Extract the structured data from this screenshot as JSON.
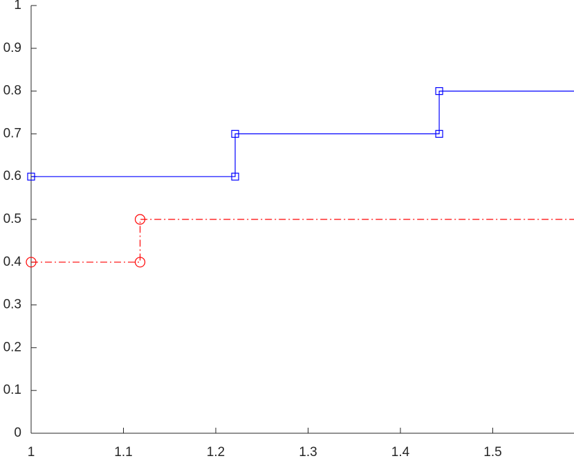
{
  "chart_data": {
    "type": "stairs",
    "series": [
      {
        "color": "#0000ff",
        "marker": "square",
        "linestyle": "solid",
        "x": [
          1,
          1.221,
          1.442
        ],
        "values": [
          0.6,
          0.7,
          0.8
        ]
      },
      {
        "color": "#ff0000",
        "marker": "circle",
        "linestyle": "dashdot",
        "x": [
          1,
          1.118
        ],
        "values": [
          0.4,
          0.5
        ]
      }
    ],
    "xlim": [
      1,
      1.588
    ],
    "ylim": [
      0,
      1
    ],
    "xticks": [
      1,
      1.1,
      1.2,
      1.3,
      1.4,
      1.5
    ],
    "yticks": [
      0,
      0.1,
      0.2,
      0.3,
      0.4,
      0.5,
      0.6,
      0.7,
      0.8,
      0.9,
      1
    ]
  }
}
